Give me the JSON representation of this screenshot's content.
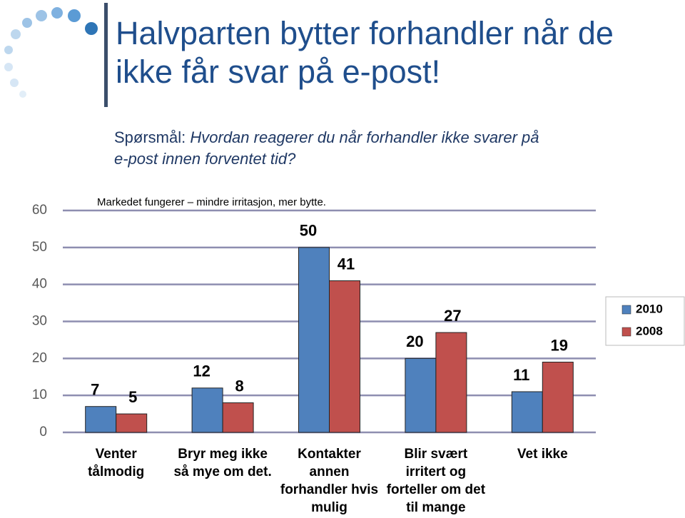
{
  "slide": {
    "title": "Halvparten bytter forhandler når de ikke får svar på e-post!",
    "question_label": "Spørsmål:",
    "question": "Hvordan reagerer du når forhandler ikke svarer på e-post innen forventet tid?"
  },
  "chart_data": {
    "type": "bar",
    "annotation": "Markedet fungerer – mindre irritasjon, mer bytte.",
    "categories": [
      "Venter tålmodig",
      "Bryr meg ikke så mye om det.",
      "Kontakter annen forhandler hvis mulig",
      "Blir svært irritert og forteller om det til mange",
      "Vet ikke"
    ],
    "series": [
      {
        "name": "2010",
        "color": "#4f81bd",
        "values": [
          7,
          12,
          50,
          20,
          11
        ]
      },
      {
        "name": "2008",
        "color": "#c0504d",
        "values": [
          5,
          8,
          41,
          27,
          19
        ]
      }
    ],
    "ylim": [
      0,
      60
    ],
    "yticks": [
      0,
      10,
      20,
      30,
      40,
      50,
      60
    ],
    "grid": true,
    "legend": "right"
  }
}
